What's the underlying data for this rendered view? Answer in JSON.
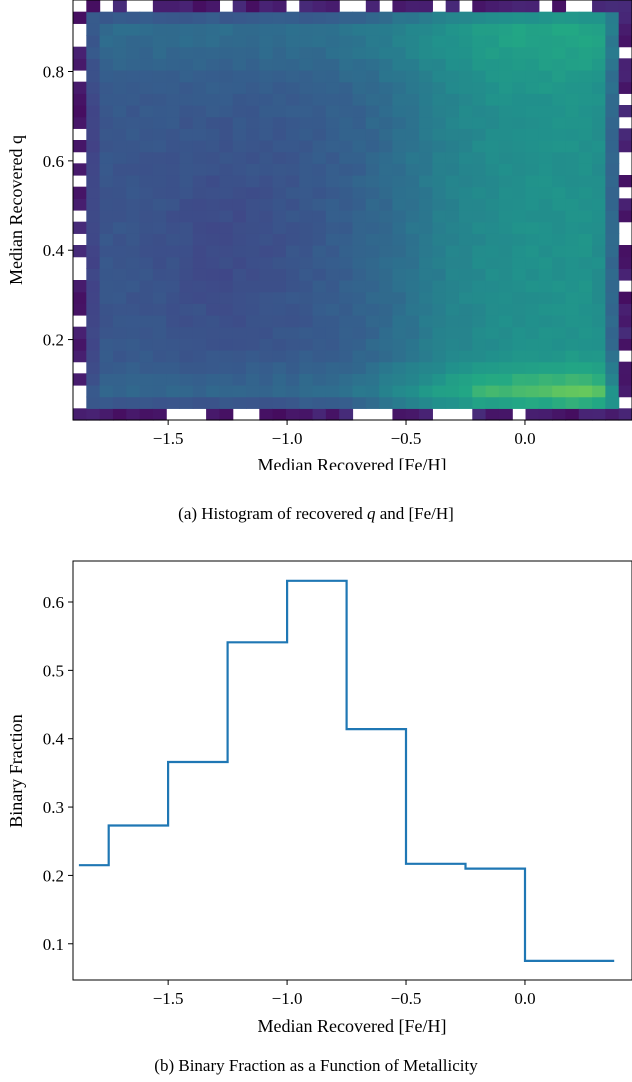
{
  "chart_data": [
    {
      "type": "heatmap",
      "xlabel": "Median Recovered [Fe/H]",
      "ylabel": "Median Recovered q",
      "xlim": [
        -1.9,
        0.45
      ],
      "ylim": [
        0.02,
        0.96
      ],
      "xticks": [
        -1.5,
        -1.0,
        -0.5,
        0.0
      ],
      "yticks": [
        0.2,
        0.4,
        0.6,
        0.8
      ],
      "xtick_labels": [
        "−1.5",
        "−1.0",
        "−0.5",
        "0.0"
      ],
      "ytick_labels": [
        "0.2",
        "0.4",
        "0.6",
        "0.8"
      ],
      "colormap": "viridis",
      "grid": false,
      "caption_prefix": "(a) Histogram of recovered ",
      "caption_var": "q",
      "caption_suffix": " and [Fe/H]"
    },
    {
      "type": "line",
      "drawstyle": "steps-mid",
      "x": [
        -1.875,
        -1.625,
        -1.375,
        -1.125,
        -0.875,
        -0.625,
        -0.375,
        -0.125,
        0.125,
        0.375
      ],
      "values": [
        0.215,
        0.273,
        0.366,
        0.541,
        0.631,
        0.414,
        0.217,
        0.21,
        0.075,
        0.075
      ],
      "xlabel": "Median Recovered [Fe/H]",
      "ylabel": "Binary Fraction",
      "xlim": [
        -1.9,
        0.45
      ],
      "ylim": [
        0.047,
        0.66
      ],
      "xticks": [
        -1.5,
        -1.0,
        -0.5,
        0.0
      ],
      "yticks": [
        0.1,
        0.2,
        0.3,
        0.4,
        0.5,
        0.6
      ],
      "xtick_labels": [
        "−1.5",
        "−1.0",
        "−0.5",
        "0.0"
      ],
      "ytick_labels": [
        "0.1",
        "0.2",
        "0.3",
        "0.4",
        "0.5",
        "0.6"
      ],
      "line_color": "#1f77b4",
      "grid": false,
      "caption": "(b) Binary Fraction as a Function of Metallicity"
    }
  ]
}
